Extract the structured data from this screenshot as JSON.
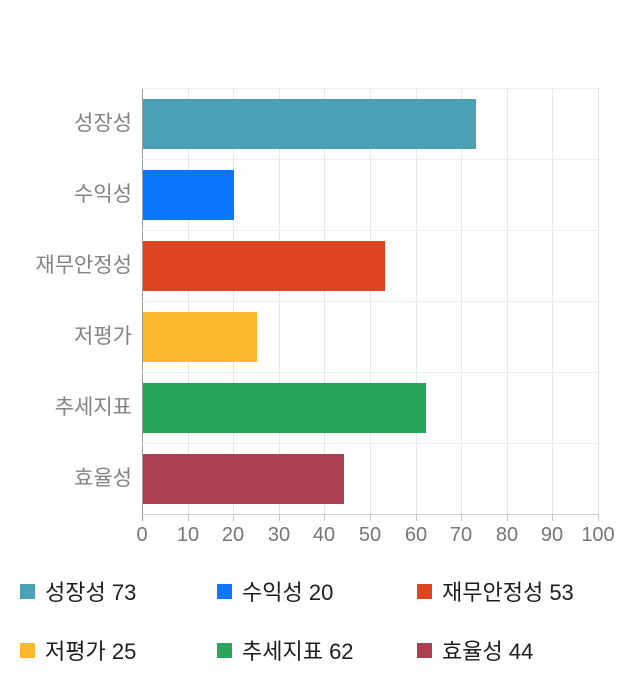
{
  "chart_data": {
    "type": "bar",
    "orientation": "horizontal",
    "title": "",
    "categories": [
      "성장성",
      "수익성",
      "재무안정성",
      "저평가",
      "추세지표",
      "효율성"
    ],
    "values": [
      73,
      20,
      53,
      25,
      62,
      44
    ],
    "colors": [
      "#4BA0B5",
      "#0B76FE",
      "#DF4423",
      "#FCB930",
      "#28A75A",
      "#AC4050"
    ],
    "xlabel": "",
    "ylabel": "",
    "xlim": [
      0,
      100
    ],
    "x_ticks": [
      "0",
      "10",
      "20",
      "30",
      "40",
      "50",
      "60",
      "70",
      "80",
      "90",
      "100"
    ],
    "grid": true,
    "legend_position": "bottom",
    "legend_labels": [
      "성장성 73",
      "수익성 20",
      "재무안정성 53",
      "저평가 25",
      "추세지표 62",
      "효율성 44"
    ]
  }
}
